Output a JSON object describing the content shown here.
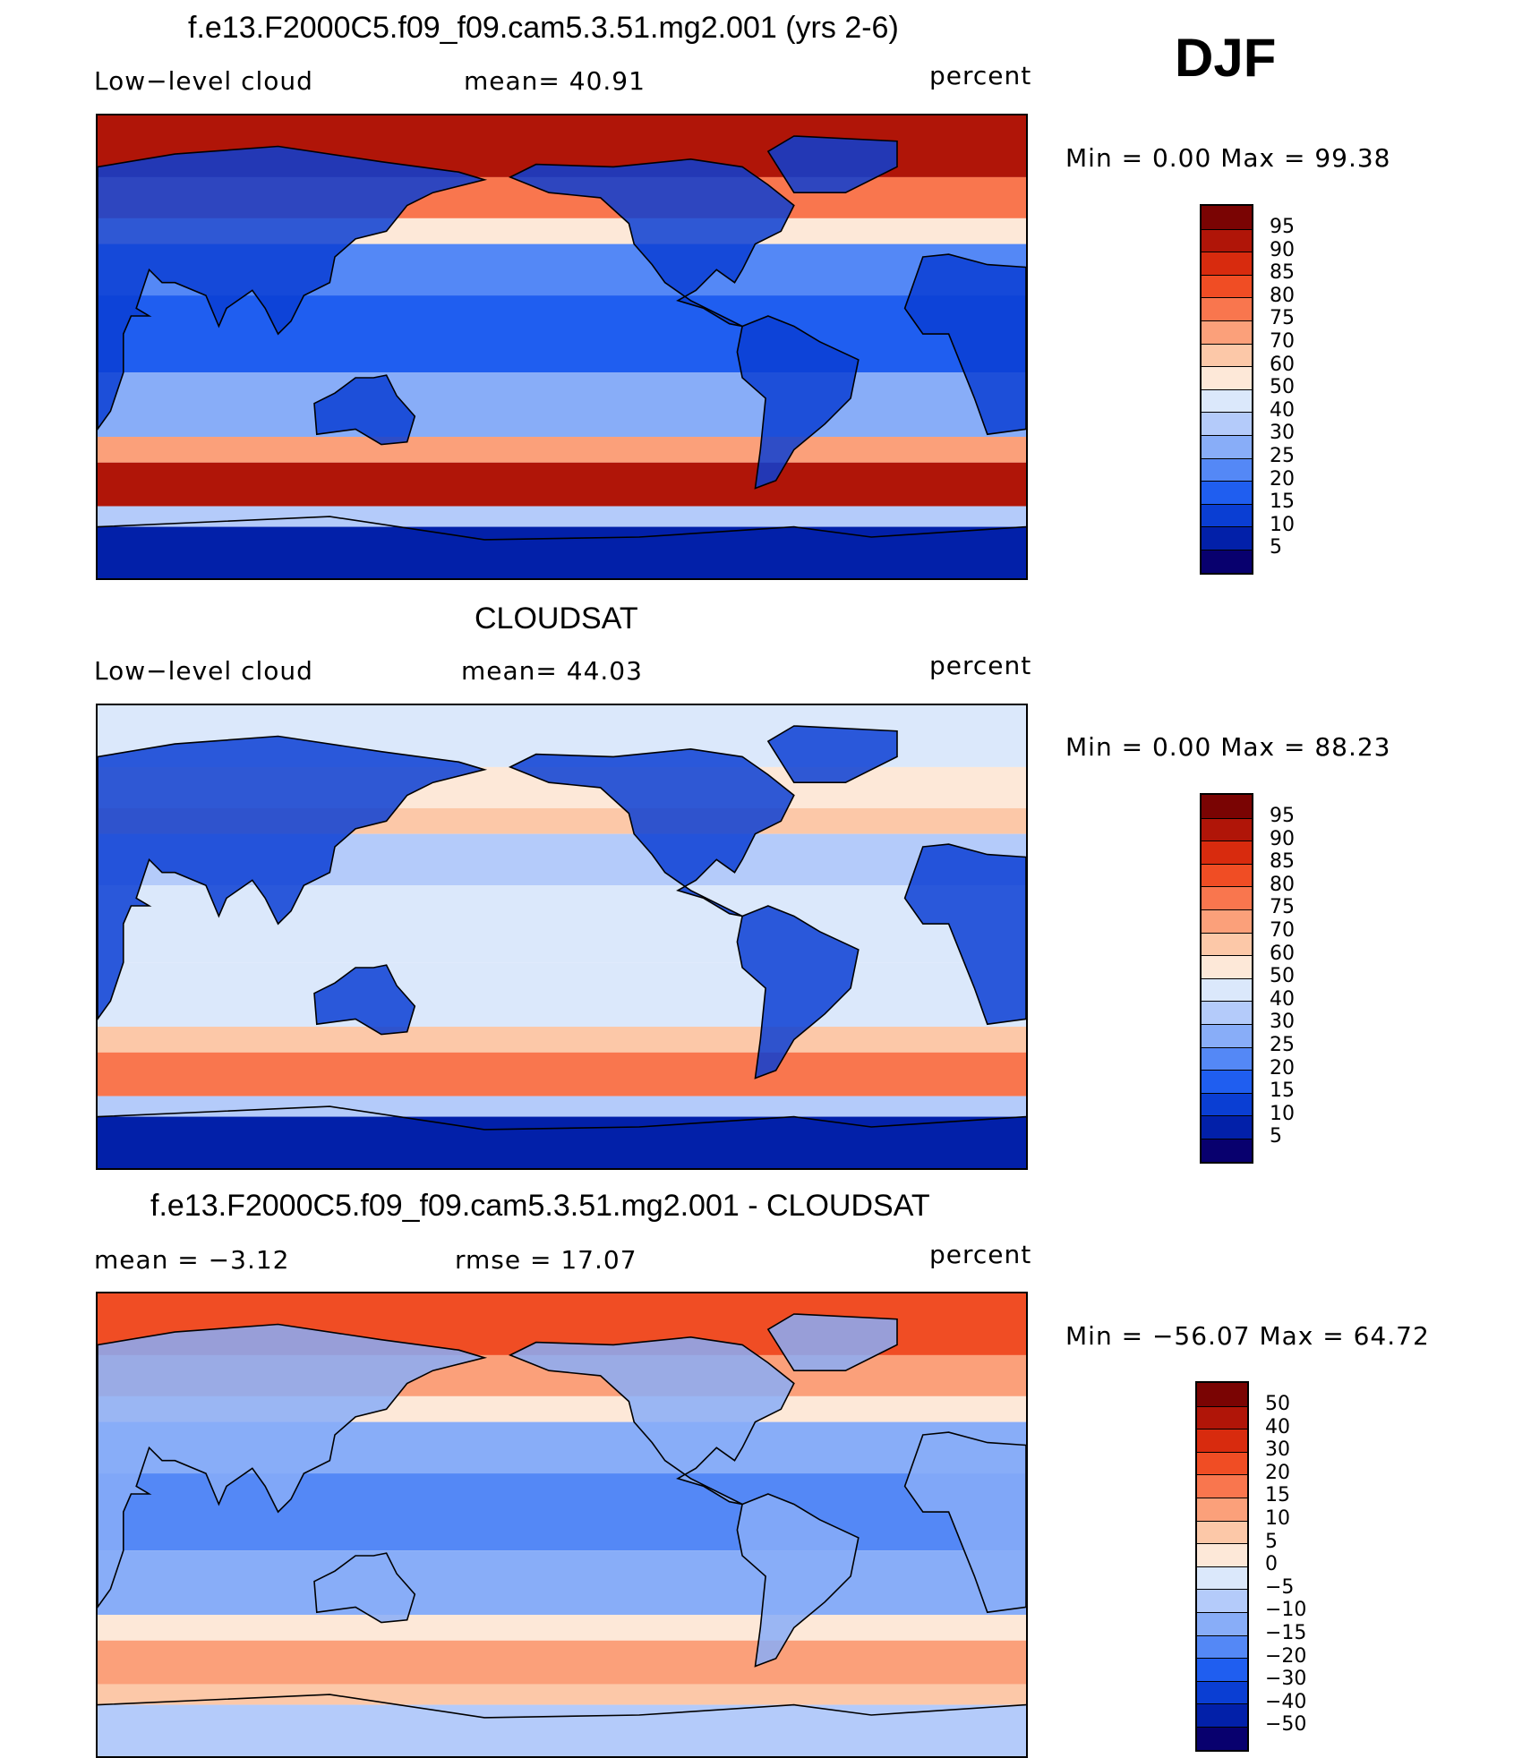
{
  "season": "DJF",
  "palettes": {
    "abs": [
      "#08006e",
      "#0220a9",
      "#0a3ed3",
      "#1f5ef0",
      "#5488f6",
      "#88adf8",
      "#b4cbfa",
      "#dbe8fb",
      "#fde8d8",
      "#fcc8a8",
      "#fba07a",
      "#f9764e",
      "#f04d24",
      "#d82b0e",
      "#b01508",
      "#7a0403"
    ],
    "diff": [
      "#08006e",
      "#0220a9",
      "#0a3ed3",
      "#1f5ef0",
      "#5488f6",
      "#88adf8",
      "#b4cbfa",
      "#dbe8fb",
      "#fde8d8",
      "#fcc8a8",
      "#fba07a",
      "#f9764e",
      "#f04d24",
      "#d82b0e",
      "#b01508",
      "#7a0403"
    ]
  },
  "panels": [
    {
      "id": "model",
      "title": "f.e13.F2000C5.f09_f09.cam5.3.51.mg2.001 (yrs 2-6)",
      "left_label": "Low−level cloud",
      "mid_label": "mean=  40.91",
      "right_label": "percent",
      "minmax": "Min =    0.00 Max =   99.38",
      "palette": "abs",
      "levels": [
        "95",
        "90",
        "85",
        "80",
        "75",
        "70",
        "60",
        "50",
        "40",
        "30",
        "25",
        "20",
        "15",
        "10",
        "5"
      ],
      "bands": [
        {
          "lat_top": 90,
          "lat_bot": 66,
          "level": 14
        },
        {
          "lat_top": 66,
          "lat_bot": 50,
          "level": 11
        },
        {
          "lat_top": 50,
          "lat_bot": 40,
          "level": 8
        },
        {
          "lat_top": 40,
          "lat_bot": 20,
          "level": 4
        },
        {
          "lat_top": 20,
          "lat_bot": -10,
          "level": 3
        },
        {
          "lat_top": -10,
          "lat_bot": -35,
          "level": 5
        },
        {
          "lat_top": -35,
          "lat_bot": -45,
          "level": 10
        },
        {
          "lat_top": -45,
          "lat_bot": -62,
          "level": 14
        },
        {
          "lat_top": -62,
          "lat_bot": -70,
          "level": 6
        },
        {
          "lat_top": -70,
          "lat_bot": -90,
          "level": 1
        }
      ]
    },
    {
      "id": "obs",
      "title": "CLOUDSAT",
      "left_label": "Low−level cloud",
      "mid_label": "mean=  44.03",
      "right_label": "percent",
      "minmax": "Min =    0.00 Max =   88.23",
      "palette": "abs",
      "levels": [
        "95",
        "90",
        "85",
        "80",
        "75",
        "70",
        "60",
        "50",
        "40",
        "30",
        "25",
        "20",
        "15",
        "10",
        "5"
      ],
      "bands": [
        {
          "lat_top": 90,
          "lat_bot": 66,
          "level": 7
        },
        {
          "lat_top": 66,
          "lat_bot": 50,
          "level": 8
        },
        {
          "lat_top": 50,
          "lat_bot": 40,
          "level": 9
        },
        {
          "lat_top": 40,
          "lat_bot": 20,
          "level": 6
        },
        {
          "lat_top": 20,
          "lat_bot": -10,
          "level": 7
        },
        {
          "lat_top": -10,
          "lat_bot": -35,
          "level": 7
        },
        {
          "lat_top": -35,
          "lat_bot": -45,
          "level": 9
        },
        {
          "lat_top": -45,
          "lat_bot": -62,
          "level": 11
        },
        {
          "lat_top": -62,
          "lat_bot": -70,
          "level": 6
        },
        {
          "lat_top": -70,
          "lat_bot": -90,
          "level": 1
        }
      ]
    },
    {
      "id": "diff",
      "title": "f.e13.F2000C5.f09_f09.cam5.3.51.mg2.001 - CLOUDSAT",
      "left_label": "mean =   −3.12",
      "mid_label": "rmse =   17.07",
      "right_label": "percent",
      "minmax": "Min = −56.07 Max =   64.72",
      "palette": "diff",
      "levels": [
        "50",
        "40",
        "30",
        "20",
        "15",
        "10",
        "5",
        "0",
        "−5",
        "−10",
        "−15",
        "−20",
        "−30",
        "−40",
        "−50"
      ],
      "bands": [
        {
          "lat_top": 90,
          "lat_bot": 66,
          "level": 12
        },
        {
          "lat_top": 66,
          "lat_bot": 50,
          "level": 10
        },
        {
          "lat_top": 50,
          "lat_bot": 40,
          "level": 8
        },
        {
          "lat_top": 40,
          "lat_bot": 20,
          "level": 5
        },
        {
          "lat_top": 20,
          "lat_bot": -10,
          "level": 4
        },
        {
          "lat_top": -10,
          "lat_bot": -35,
          "level": 5
        },
        {
          "lat_top": -35,
          "lat_bot": -45,
          "level": 8
        },
        {
          "lat_top": -45,
          "lat_bot": -62,
          "level": 10
        },
        {
          "lat_top": -62,
          "lat_bot": -70,
          "level": 9
        },
        {
          "lat_top": -70,
          "lat_bot": -90,
          "level": 6
        }
      ]
    }
  ]
}
